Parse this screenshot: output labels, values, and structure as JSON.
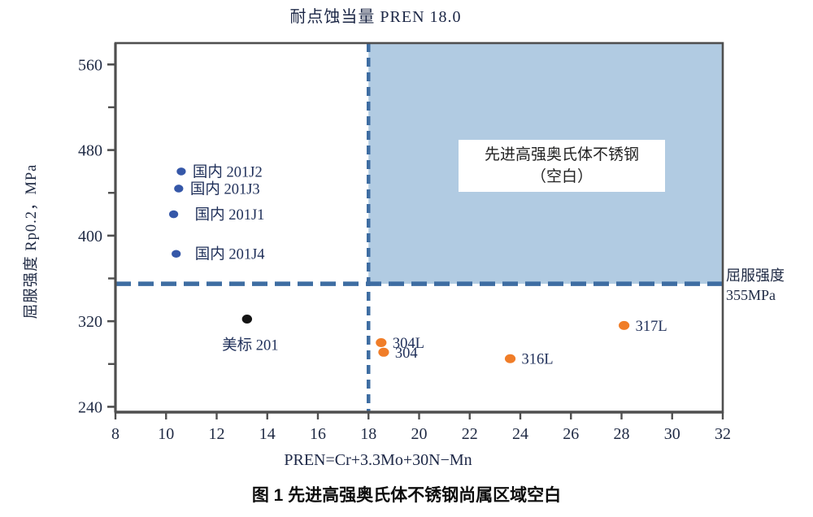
{
  "title": "耐点蚀当量 PREN 18.0",
  "caption": "图 1 先进高强奥氏体不锈钢尚属区域空白",
  "region_label": {
    "line1": "先进高强奥氏体不锈钢",
    "line2": "（空白）"
  },
  "right_annotation": {
    "line1": "屈服强度",
    "line2": "355MPa"
  },
  "colors": {
    "shaded_region": "#b1cbe2",
    "dashed_line": "#3e6da2",
    "axis": "#4f4f4f",
    "tick_text": "#1f2a44",
    "label_text": "#20305a",
    "blue_dot": "#3557a8",
    "orange_dot": "#f07d28",
    "black_dot": "#141414",
    "caption_text": "#111111"
  },
  "chart_data": {
    "type": "scatter",
    "title": "耐点蚀当量 PREN 18.0",
    "xlabel": "PREN=Cr+3.3Mo+30N−Mn",
    "ylabel": "屈服强度 Rp0.2，MPa",
    "xlim": [
      8,
      32
    ],
    "ylim": [
      235,
      580
    ],
    "x_ticks": [
      8,
      10,
      12,
      14,
      16,
      18,
      20,
      22,
      24,
      26,
      28,
      30,
      32
    ],
    "y_ticks_major": [
      240,
      320,
      400,
      480,
      560
    ],
    "y_ticks_minor": [
      280,
      360,
      440,
      520
    ],
    "grid": false,
    "legend": "none",
    "reference_lines": {
      "vertical": {
        "x": 18.0,
        "label": "耐点蚀当量 PREN 18.0",
        "style": "dashed"
      },
      "horizontal": {
        "y": 355,
        "label": "屈服强度 355MPa",
        "style": "dashed"
      }
    },
    "shaded_region": {
      "x_range": [
        18,
        32
      ],
      "y_range": [
        355,
        580
      ],
      "label": "先进高强奥氏体不锈钢（空白）"
    },
    "series": [
      {
        "color_name": "blue",
        "color": "#3557a8",
        "points": [
          {
            "label": "国内 201J2",
            "x": 10.6,
            "y": 460
          },
          {
            "label": "国内 201J3",
            "x": 10.5,
            "y": 444
          },
          {
            "label": "国内 201J1",
            "x": 10.3,
            "y": 420,
            "label_dx": 26
          },
          {
            "label": "国内 201J4",
            "x": 10.4,
            "y": 383,
            "label_dx": 23
          }
        ]
      },
      {
        "color_name": "black",
        "color": "#141414",
        "points": [
          {
            "label": "美标 201",
            "x": 13.2,
            "y": 322,
            "label_position": "below"
          }
        ]
      },
      {
        "color_name": "orange",
        "color": "#f07d28",
        "points": [
          {
            "label": "304L",
            "x": 18.5,
            "y": 300
          },
          {
            "label": "304",
            "x": 18.6,
            "y": 291
          },
          {
            "label": "316L",
            "x": 23.6,
            "y": 285
          },
          {
            "label": "317L",
            "x": 28.1,
            "y": 316
          }
        ]
      }
    ]
  }
}
